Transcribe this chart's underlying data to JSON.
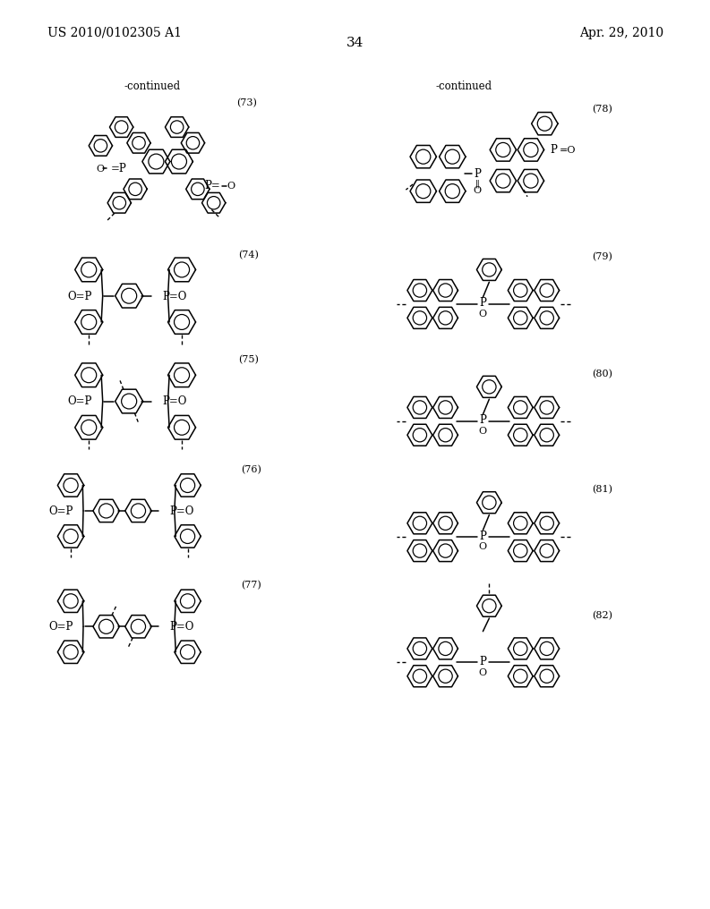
{
  "background_color": "#ffffff",
  "page_width": 10.24,
  "page_height": 13.2,
  "header_left": "US 2010/0102305 A1",
  "header_right": "Apr. 29, 2010",
  "page_number": "34",
  "label_continued_left": "-continued",
  "label_continued_right": "-continued",
  "compound_numbers": [
    "(73)",
    "(74)",
    "(75)",
    "(76)",
    "(77)",
    "(78)",
    "(79)",
    "(80)",
    "(81)",
    "(82)"
  ],
  "font_size_header": 10,
  "font_size_number": 8,
  "font_size_page": 11,
  "line_width": 1.1
}
